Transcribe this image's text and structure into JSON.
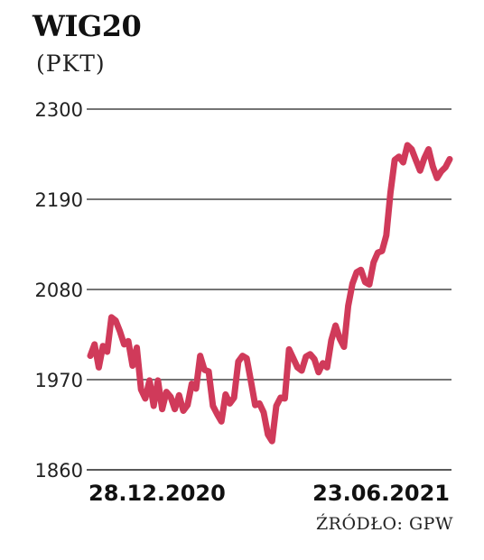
{
  "header": {
    "title": "WIG20",
    "unit": "(PKT)"
  },
  "footer": {
    "source": "ŹRÓDŁO: GPW"
  },
  "colors": {
    "line": "#d03a5a",
    "grid": "#222222",
    "text": "#1a1a1a"
  },
  "chart_data": {
    "type": "line",
    "title": "WIG20",
    "ylabel": "(PKT)",
    "xlabel": "",
    "ylim": [
      1860,
      2300
    ],
    "yticks": [
      2300,
      2190,
      2080,
      1970,
      1860
    ],
    "xtick_labels": [
      "28.12.2020",
      "23.06.2021"
    ],
    "grid": true,
    "series": [
      {
        "values": [
          1999,
          2013,
          1985,
          2011,
          2004,
          2046,
          2042,
          2029,
          2013,
          2017,
          1987,
          2009,
          1958,
          1947,
          1969,
          1938,
          1969,
          1934,
          1955,
          1949,
          1934,
          1951,
          1932,
          1939,
          1965,
          1959,
          1999,
          1982,
          1980,
          1938,
          1928,
          1919,
          1952,
          1941,
          1948,
          1992,
          1999,
          1996,
          1968,
          1939,
          1941,
          1930,
          1903,
          1895,
          1938,
          1948,
          1947,
          2007,
          1996,
          1985,
          1981,
          1998,
          2001,
          1995,
          1979,
          1990,
          1985,
          2018,
          2036,
          2020,
          2010,
          2060,
          2087,
          2101,
          2104,
          2089,
          2086,
          2113,
          2125,
          2127,
          2146,
          2198,
          2238,
          2242,
          2235,
          2256,
          2251,
          2238,
          2225,
          2240,
          2251,
          2230,
          2216,
          2224,
          2229,
          2239
        ]
      }
    ]
  }
}
